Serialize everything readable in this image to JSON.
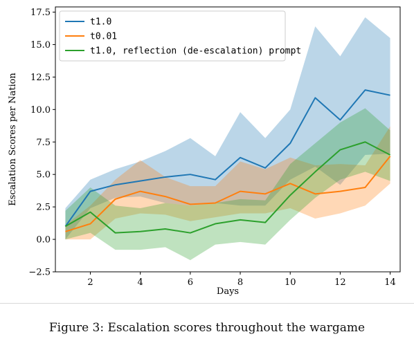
{
  "caption": "Figure 3: Escalation scores throughout the wargame",
  "chart_data": {
    "type": "line",
    "title": "",
    "xlabel": "Days",
    "ylabel": "Escalation Scores per Nation",
    "xlim": [
      0.6,
      14.4
    ],
    "ylim": [
      -2.5,
      17.9
    ],
    "xticks": [
      2,
      4,
      6,
      8,
      10,
      12,
      14
    ],
    "yticks": [
      -2.5,
      0.0,
      2.5,
      5.0,
      7.5,
      10.0,
      12.5,
      15.0,
      17.5
    ],
    "ytick_labels": [
      "−2.5",
      "0.0",
      "2.5",
      "5.0",
      "7.5",
      "10.0",
      "12.5",
      "15.0",
      "17.5"
    ],
    "legend_position": "upper-left",
    "grid": false,
    "x": [
      1,
      2,
      3,
      4,
      5,
      6,
      7,
      8,
      9,
      10,
      11,
      12,
      13,
      14
    ],
    "series": [
      {
        "name": "t1.0",
        "color": "#1f77b4",
        "values": [
          1.0,
          3.7,
          4.2,
          4.5,
          4.8,
          5.0,
          4.6,
          6.3,
          5.5,
          7.4,
          10.9,
          9.2,
          11.5,
          11.1
        ],
        "lower": [
          0.0,
          2.4,
          3.2,
          3.3,
          2.8,
          2.6,
          2.8,
          2.6,
          2.6,
          4.6,
          5.6,
          4.2,
          6.5,
          6.6
        ],
        "upper": [
          2.4,
          4.6,
          5.4,
          6.0,
          6.8,
          7.8,
          6.4,
          9.8,
          7.8,
          10.0,
          16.4,
          14.1,
          17.1,
          15.5
        ]
      },
      {
        "name": "t0.01",
        "color": "#ff7f0e",
        "values": [
          0.6,
          1.2,
          3.1,
          3.7,
          3.3,
          2.7,
          2.8,
          3.7,
          3.5,
          4.3,
          3.5,
          3.7,
          4.0,
          6.4
        ],
        "lower": [
          0.0,
          0.0,
          1.6,
          2.0,
          1.9,
          1.4,
          1.7,
          2.0,
          2.0,
          2.4,
          1.6,
          2.0,
          2.6,
          4.3
        ],
        "upper": [
          1.1,
          2.6,
          4.6,
          6.1,
          4.8,
          4.1,
          4.1,
          6.0,
          5.4,
          6.3,
          5.7,
          5.8,
          5.7,
          8.7
        ]
      },
      {
        "name": "t1.0, reflection (de-escalation) prompt",
        "color": "#2ca02c",
        "values": [
          1.0,
          2.1,
          0.5,
          0.6,
          0.8,
          0.5,
          1.2,
          1.5,
          1.3,
          3.4,
          5.2,
          6.9,
          7.5,
          6.5
        ],
        "lower": [
          0.0,
          0.5,
          -0.8,
          -0.8,
          -0.6,
          -1.6,
          -0.4,
          -0.2,
          -0.4,
          1.5,
          3.2,
          4.6,
          5.2,
          4.5
        ],
        "upper": [
          2.2,
          4.0,
          2.6,
          2.4,
          2.8,
          2.6,
          2.8,
          3.1,
          3.0,
          5.8,
          7.4,
          9.0,
          10.1,
          8.4
        ]
      }
    ]
  }
}
